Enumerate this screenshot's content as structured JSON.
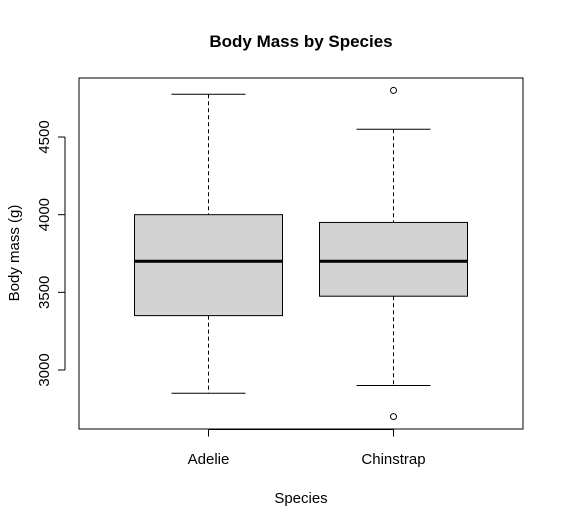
{
  "chart_data": {
    "type": "boxplot",
    "title": "Body Mass by Species",
    "xlabel": "Species",
    "ylabel": "Body mass (g)",
    "ylim": [
      2620,
      4880
    ],
    "yticks": [
      3000,
      3500,
      4000,
      4500
    ],
    "categories": [
      "Adelie",
      "Chinstrap"
    ],
    "boxes": [
      {
        "category": "Adelie",
        "whisker_low": 2850,
        "q1": 3350,
        "median": 3700,
        "q3": 4000,
        "whisker_high": 4775,
        "outliers": []
      },
      {
        "category": "Chinstrap",
        "whisker_low": 2900,
        "q1": 3475,
        "median": 3700,
        "q3": 3950,
        "whisker_high": 4550,
        "outliers": [
          4800,
          2700
        ]
      }
    ],
    "box_fill": "#d3d3d3",
    "grid": false,
    "legend": "none"
  }
}
